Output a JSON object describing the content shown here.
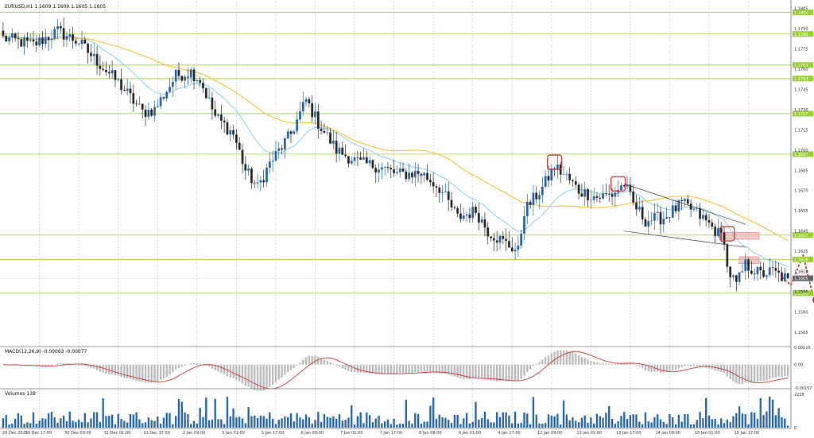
{
  "chart_data": [
    {
      "type": "candlestick",
      "symbol_line": "EURUSD,H1  1.1609 1.1609 1.1605 1.1605",
      "ylim": [
        1.1555,
        1.181
      ],
      "y_ticks": [
        "1.1805",
        "1.1790",
        "1.1775",
        "1.1760",
        "1.1745",
        "1.1730",
        "1.1715",
        "1.1700",
        "1.1685",
        "1.1670",
        "1.1655",
        "1.1640",
        "1.1625",
        "1.1610",
        "1.1595",
        "1.1580",
        "1.1565"
      ],
      "x_tick_labels": [
        "29 Dec 2025",
        "29 Dec 17:00",
        "30 Dec 09:00",
        "31 Dec 01:00",
        "31 Dec 17:00",
        "2 Jan 09:00",
        "5 Jan 01:00",
        "5 Jan 17:00",
        "6 Jan 09:00",
        "7 Jan 01:00",
        "7 Jan 17:00",
        "8 Jan 09:00",
        "9 Jan 01:00",
        "9 Jan 17:00",
        "12 Jan 09:00",
        "13 Jan 01:00",
        "13 Jan 17:00",
        "14 Jan 09:00",
        "15 Jan 01:00",
        "15 Jan 17:00"
      ],
      "bar_count": 260,
      "horizontal_levels": [
        {
          "value": 1.1802,
          "label": "1.1802"
        },
        {
          "value": 1.1786,
          "label": "1.1786"
        },
        {
          "value": 1.1763,
          "label": "1.1763"
        },
        {
          "value": 1.1753,
          "label": "1.1753"
        },
        {
          "value": 1.1727,
          "label": "1.1727"
        },
        {
          "value": 1.1697,
          "label": "1.1697"
        },
        {
          "value": 1.1637,
          "label": "1.1637"
        },
        {
          "value": 1.1619,
          "label": "1.1619"
        },
        {
          "value": 1.1594,
          "label": "1.1594"
        }
      ],
      "current_price": {
        "value": 1.1605,
        "label": "1.1605"
      },
      "close_path": [
        [
          0,
          1.1783
        ],
        [
          10,
          1.1778
        ],
        [
          18,
          1.1788
        ],
        [
          25,
          1.178
        ],
        [
          30,
          1.1768
        ],
        [
          38,
          1.175
        ],
        [
          46,
          1.1728
        ],
        [
          50,
          1.173
        ],
        [
          57,
          1.1755
        ],
        [
          62,
          1.1758
        ],
        [
          65,
          1.1752
        ],
        [
          70,
          1.1725
        ],
        [
          76,
          1.1712
        ],
        [
          80,
          1.1685
        ],
        [
          84,
          1.1672
        ],
        [
          88,
          1.169
        ],
        [
          95,
          1.1712
        ],
        [
          100,
          1.1737
        ],
        [
          104,
          1.172
        ],
        [
          110,
          1.17
        ],
        [
          118,
          1.169
        ],
        [
          124,
          1.1688
        ],
        [
          130,
          1.1682
        ],
        [
          138,
          1.1683
        ],
        [
          144,
          1.1672
        ],
        [
          150,
          1.165
        ],
        [
          156,
          1.1655
        ],
        [
          160,
          1.164
        ],
        [
          165,
          1.1632
        ],
        [
          170,
          1.1625
        ],
        [
          172,
          1.1655
        ],
        [
          178,
          1.1672
        ],
        [
          182,
          1.1688
        ],
        [
          186,
          1.168
        ],
        [
          190,
          1.167
        ],
        [
          196,
          1.1665
        ],
        [
          201,
          1.1667
        ],
        [
          205,
          1.1675
        ],
        [
          208,
          1.166
        ],
        [
          212,
          1.1648
        ],
        [
          218,
          1.165
        ],
        [
          224,
          1.166
        ],
        [
          228,
          1.1655
        ],
        [
          233,
          1.1645
        ],
        [
          236,
          1.1638
        ],
        [
          238,
          1.1635
        ],
        [
          239,
          1.1612
        ],
        [
          242,
          1.16
        ],
        [
          245,
          1.1615
        ],
        [
          250,
          1.1608
        ],
        [
          254,
          1.161
        ],
        [
          257,
          1.1606
        ],
        [
          259,
          1.1605
        ]
      ],
      "macd": {
        "label": "MACD(12,26,9) -0.00063 -0.00077",
        "params": [
          12,
          26,
          9
        ],
        "macd_value": -0.00063,
        "signal_value": -0.00077,
        "ylim": [
          -0.00157,
          0.00116
        ],
        "y_ticks": [
          "0.00116",
          "0.00",
          "-0.00157"
        ]
      },
      "volume": {
        "label": "Volumes 138",
        "current": 138,
        "ymax": 2228,
        "y_ticks": [
          "2228",
          "0"
        ]
      },
      "annotations": [
        {
          "kind": "highlight-box",
          "at_bar": 182,
          "price": 1.1691
        },
        {
          "kind": "highlight-box",
          "at_bar": 203,
          "price": 1.1675
        },
        {
          "kind": "highlight-box",
          "at_bar": 239,
          "price": 1.1638
        },
        {
          "kind": "descending-channel",
          "from_bar": 205,
          "to_bar": 243,
          "upper": [
            1.1675,
            1.1645
          ],
          "lower": [
            1.164,
            1.1628
          ]
        },
        {
          "kind": "resistance-zone",
          "bar_from": 238,
          "price_low": 1.1634,
          "price_high": 1.1639
        },
        {
          "kind": "resistance-zone",
          "bar_from": 244,
          "price_low": 1.1616,
          "price_high": 1.1621
        },
        {
          "kind": "forecast-arrow",
          "points": [
            [
              257,
              1.1606
            ],
            [
              260,
              1.16
            ],
            [
              264,
              1.1622
            ],
            [
              268,
              1.1586
            ]
          ]
        }
      ],
      "colors": {
        "bull": "#1f5fa8",
        "bear": "#202020",
        "ma_fast": "#80c8ee",
        "ma_slow": "#f2c230",
        "level": "#9acd32",
        "macd_signal": "#d03030",
        "histogram": "#b8b8b8",
        "zone": "#e8a0a0",
        "arrow": "#a82020",
        "box": "#c03838",
        "volume": "#1f5fa8"
      }
    }
  ]
}
